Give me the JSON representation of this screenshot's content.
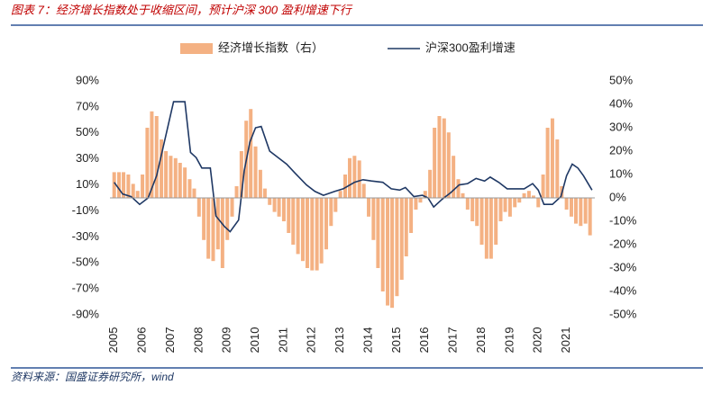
{
  "chart_data": {
    "type": "combo",
    "title": "图表 7：经济增长指数处于收缩区间，预计沪深 300 盈利增速下行",
    "source": "资料来源：国盛证券研究所，wind",
    "xlim": [
      2004.85,
      2022.0
    ],
    "xticks": [
      2005,
      2006,
      2007,
      2008,
      2009,
      2010,
      2011,
      2012,
      2013,
      2014,
      2015,
      2016,
      2017,
      2018,
      2019,
      2020,
      2021
    ],
    "ylim": [
      -90,
      90
    ],
    "yticks": [
      {
        "value": 90,
        "label": "90%"
      },
      {
        "value": 70,
        "label": "70%"
      },
      {
        "value": 50,
        "label": "50%"
      },
      {
        "value": 30,
        "label": "30%"
      },
      {
        "value": 10,
        "label": "10%"
      },
      {
        "value": -10,
        "label": "-10%"
      },
      {
        "value": -30,
        "label": "-30%"
      },
      {
        "value": -50,
        "label": "-50%"
      },
      {
        "value": -70,
        "label": "-70%"
      },
      {
        "value": -90,
        "label": "-90%"
      }
    ],
    "y2lim": [
      -50,
      50
    ],
    "y2ticks": [
      {
        "value": 50,
        "label": "50%"
      },
      {
        "value": 40,
        "label": "40%"
      },
      {
        "value": 30,
        "label": "30%"
      },
      {
        "value": 20,
        "label": "20%"
      },
      {
        "value": 10,
        "label": "10%"
      },
      {
        "value": 0,
        "label": "0%"
      },
      {
        "value": -10,
        "label": "-10%"
      },
      {
        "value": -20,
        "label": "-20%"
      },
      {
        "value": -30,
        "label": "-30%"
      },
      {
        "value": -40,
        "label": "-40%"
      },
      {
        "value": -50,
        "label": "-50%"
      }
    ],
    "series": [
      {
        "name": "经济增长指数（右）",
        "type": "bar",
        "axis": "y2",
        "color": "#f4b183",
        "x": [
          2005.0,
          2005.17,
          2005.33,
          2005.5,
          2005.67,
          2005.83,
          2006.0,
          2006.17,
          2006.33,
          2006.5,
          2006.67,
          2006.83,
          2007.0,
          2007.17,
          2007.33,
          2007.5,
          2007.67,
          2007.83,
          2008.0,
          2008.17,
          2008.33,
          2008.5,
          2008.67,
          2008.83,
          2009.0,
          2009.17,
          2009.33,
          2009.5,
          2009.67,
          2009.83,
          2010.0,
          2010.17,
          2010.33,
          2010.5,
          2010.67,
          2010.83,
          2011.0,
          2011.17,
          2011.33,
          2011.5,
          2011.67,
          2011.83,
          2012.0,
          2012.17,
          2012.33,
          2012.5,
          2012.67,
          2012.83,
          2013.0,
          2013.17,
          2013.33,
          2013.5,
          2013.67,
          2013.83,
          2014.0,
          2014.17,
          2014.33,
          2014.5,
          2014.67,
          2014.83,
          2015.0,
          2015.17,
          2015.33,
          2015.5,
          2015.67,
          2015.83,
          2016.0,
          2016.17,
          2016.33,
          2016.5,
          2016.67,
          2016.83,
          2017.0,
          2017.17,
          2017.33,
          2017.5,
          2017.67,
          2017.83,
          2018.0,
          2018.17,
          2018.33,
          2018.5,
          2018.67,
          2018.83,
          2019.0,
          2019.17,
          2019.33,
          2019.5,
          2019.67,
          2019.83,
          2020.0,
          2020.17,
          2020.33,
          2020.5,
          2020.67,
          2020.83,
          2021.0,
          2021.17,
          2021.33,
          2021.5,
          2021.67,
          2021.83
        ],
        "values": [
          11,
          11,
          11,
          10,
          6,
          3,
          10,
          30,
          37,
          35,
          25,
          20,
          18,
          17,
          15,
          13,
          8,
          4,
          -8,
          -18,
          -26,
          -27,
          -22,
          -30,
          -18,
          -8,
          5,
          20,
          33,
          38,
          22,
          12,
          4,
          -3,
          -6,
          -8,
          -10,
          -15,
          -20,
          -24,
          -27,
          -30,
          -31,
          -31,
          -28,
          -22,
          -12,
          -6,
          3,
          10,
          17,
          18,
          16,
          6,
          -8,
          -18,
          -30,
          -40,
          -46,
          -47,
          -42,
          -35,
          -25,
          -15,
          -5,
          -2,
          3,
          12,
          30,
          35,
          34,
          28,
          18,
          8,
          2,
          -5,
          -10,
          -12,
          -20,
          -26,
          -26,
          -20,
          -10,
          -6,
          -8,
          -4,
          -2,
          2,
          3,
          1,
          -4,
          10,
          30,
          34,
          25,
          5,
          -5,
          -8,
          -11,
          -12,
          -11,
          -16
        ]
      },
      {
        "name": "沪深300盈利增速",
        "type": "line",
        "axis": "y",
        "color": "#1f3864",
        "x": [
          2005.0,
          2005.3,
          2005.6,
          2005.9,
          2006.2,
          2006.5,
          2006.9,
          2007.1,
          2007.5,
          2007.7,
          2007.9,
          2008.1,
          2008.4,
          2008.6,
          2008.9,
          2009.1,
          2009.4,
          2009.6,
          2009.8,
          2010.0,
          2010.2,
          2010.5,
          2010.8,
          2011.1,
          2011.4,
          2011.8,
          2012.1,
          2012.4,
          2012.8,
          2013.1,
          2013.5,
          2013.8,
          2014.1,
          2014.5,
          2014.8,
          2015.1,
          2015.3,
          2015.6,
          2015.9,
          2016.1,
          2016.3,
          2016.6,
          2016.9,
          2017.2,
          2017.5,
          2017.8,
          2018.1,
          2018.3,
          2018.6,
          2018.9,
          2019.2,
          2019.5,
          2019.8,
          2020.0,
          2020.2,
          2020.5,
          2020.8,
          2021.0,
          2021.2,
          2021.4,
          2021.6,
          2021.9
        ],
        "values": [
          12,
          3,
          1,
          -5,
          0,
          17,
          55,
          74,
          74,
          35,
          31,
          23,
          23,
          -14,
          -22,
          -26,
          -17,
          21,
          43,
          54,
          55,
          36,
          31,
          26,
          19,
          10,
          5,
          2,
          5,
          7,
          12,
          14,
          13,
          12,
          7,
          6,
          8,
          1,
          2,
          0,
          -7,
          -1,
          4,
          10,
          11,
          15,
          13,
          16,
          12,
          7,
          7,
          7,
          11,
          6,
          -5,
          -5,
          1,
          17,
          26,
          23,
          17,
          6
        ]
      }
    ]
  }
}
